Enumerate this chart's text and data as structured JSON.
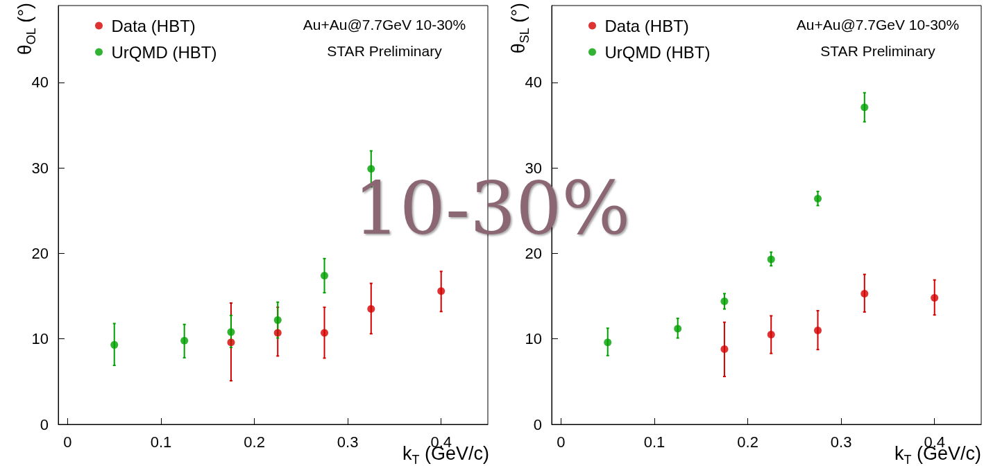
{
  "chart_data": [
    {
      "type": "scatter",
      "xlabel": "k$_{T}$ (GeV/c)",
      "ylabel": "θ$_{OL}$ (°)",
      "xlim": [
        -0.01,
        0.45
      ],
      "xticks": [
        0,
        0.1,
        0.2,
        0.3,
        0.4
      ],
      "ylim": [
        0,
        49
      ],
      "yticks": [
        0,
        10,
        20,
        30,
        40
      ],
      "grid": false,
      "legend": "top left",
      "marker": "circle",
      "annotations": [
        "Au+Au@7.7GeV 10-30%",
        "STAR Preliminary",
        "10-30%"
      ],
      "series": [
        {
          "name": "Data (HBT)",
          "color": "#d40000",
          "x": [
            0.175,
            0.225,
            0.275,
            0.325,
            0.4
          ],
          "values": [
            9.6,
            10.7,
            10.7,
            13.5,
            15.6
          ],
          "errors": [
            [
              5.1,
              14.2
            ],
            [
              8.0,
              13.7
            ],
            [
              7.75,
              13.7
            ],
            [
              10.6,
              16.5
            ],
            [
              13.2,
              17.9
            ]
          ]
        },
        {
          "name": "UrQMD (HBT)",
          "color": "#00a000",
          "x": [
            0.05,
            0.125,
            0.175,
            0.225,
            0.275,
            0.325
          ],
          "values": [
            9.3,
            9.8,
            10.8,
            12.2,
            17.4,
            29.9
          ],
          "errors": [
            [
              6.9,
              11.8
            ],
            [
              7.8,
              11.7
            ],
            [
              9.0,
              12.75
            ],
            [
              10.1,
              14.3
            ],
            [
              15.4,
              19.4
            ],
            [
              27.8,
              32.0
            ]
          ]
        }
      ]
    },
    {
      "type": "scatter",
      "xlabel": "k$_{T}$ (GeV/c)",
      "ylabel": "θ$_{SL}$ (°)",
      "xlim": [
        -0.01,
        0.45
      ],
      "xticks": [
        0,
        0.1,
        0.2,
        0.3,
        0.4
      ],
      "ylim": [
        0,
        49
      ],
      "yticks": [
        0,
        10,
        20,
        30,
        40
      ],
      "grid": false,
      "legend": "top left",
      "marker": "circle",
      "annotations": [
        "Au+Au@7.7GeV 10-30%",
        "STAR Preliminary"
      ],
      "series": [
        {
          "name": "Data (HBT)",
          "color": "#d40000",
          "x": [
            0.175,
            0.225,
            0.275,
            0.325,
            0.4
          ],
          "values": [
            8.8,
            10.5,
            11.0,
            15.3,
            14.8
          ],
          "errors": [
            [
              5.6,
              11.95
            ],
            [
              8.3,
              12.7
            ],
            [
              8.75,
              13.3
            ],
            [
              13.15,
              17.55
            ],
            [
              12.8,
              16.9
            ]
          ]
        },
        {
          "name": "UrQMD (HBT)",
          "color": "#00a000",
          "x": [
            0.05,
            0.125,
            0.175,
            0.225,
            0.275,
            0.325
          ],
          "values": [
            9.6,
            11.2,
            14.4,
            19.3,
            26.4,
            37.1
          ],
          "errors": [
            [
              8.05,
              11.25
            ],
            [
              10.1,
              12.4
            ],
            [
              13.5,
              15.3
            ],
            [
              18.55,
              20.15
            ],
            [
              25.6,
              27.25
            ],
            [
              35.4,
              38.8
            ]
          ]
        }
      ]
    }
  ]
}
